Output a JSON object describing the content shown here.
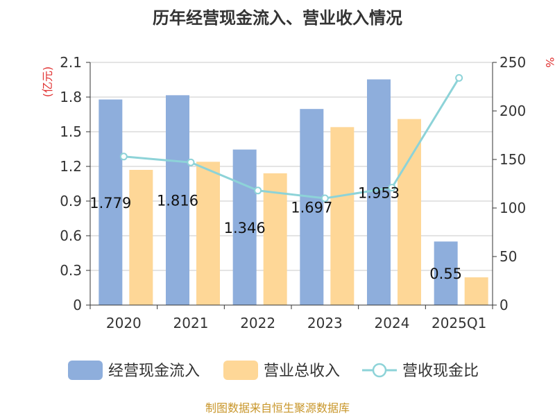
{
  "chart_data": {
    "type": "bar",
    "title": "历年经营现金流入、营业收入情况",
    "categories": [
      "2020",
      "2021",
      "2022",
      "2023",
      "2024",
      "2025Q1"
    ],
    "series": [
      {
        "name": "经营现金流入",
        "type": "bar",
        "axis": "left",
        "color": "#8eaedc",
        "values": [
          1.779,
          1.816,
          1.346,
          1.697,
          1.953,
          0.55
        ],
        "labels": [
          "1.779",
          "1.816",
          "1.346",
          "1.697",
          "1.953",
          "0.55"
        ]
      },
      {
        "name": "营业总收入",
        "type": "bar",
        "axis": "left",
        "color": "#fed797",
        "values": [
          1.17,
          1.24,
          1.14,
          1.54,
          1.61,
          0.24
        ]
      },
      {
        "name": "营收现金比",
        "type": "line",
        "axis": "right",
        "color": "#8dd3d8",
        "values": [
          153,
          147,
          118,
          110,
          121,
          234
        ]
      }
    ],
    "y_left": {
      "unit": "(亿元)",
      "min": 0,
      "max": 2.1,
      "ticks": [
        "0",
        "0.3",
        "0.6",
        "0.9",
        "1.2",
        "1.5",
        "1.8",
        "2.1"
      ]
    },
    "y_right": {
      "unit": "%",
      "min": 0,
      "max": 250,
      "ticks": [
        "0",
        "50",
        "100",
        "150",
        "200",
        "250"
      ]
    },
    "grid": true,
    "legend_position": "bottom"
  },
  "source": "制图数据来自恒生聚源数据库"
}
